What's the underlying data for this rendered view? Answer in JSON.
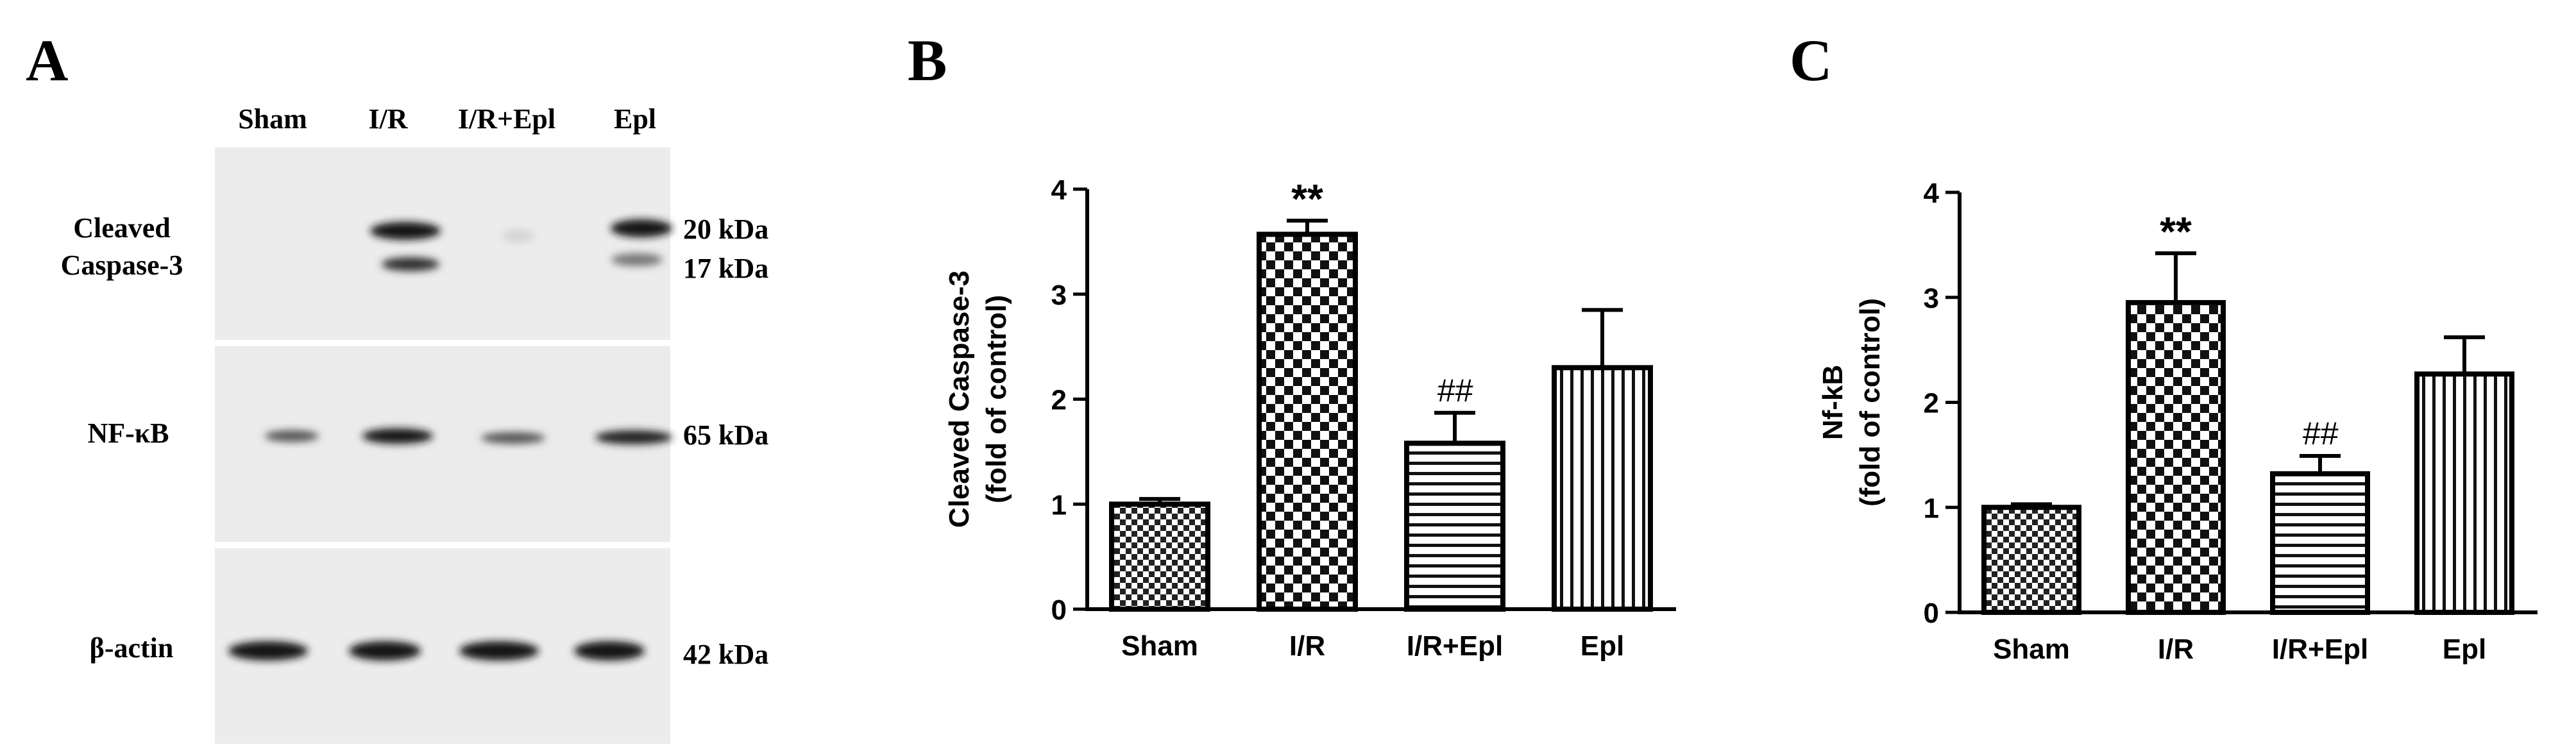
{
  "panel_a": {
    "letter": "A",
    "lanes": [
      "Sham",
      "I/R",
      "I/R+Epl",
      "Epl"
    ],
    "blots": [
      {
        "label_lines": [
          "Cleaved",
          "Caspase-3"
        ],
        "sizes": [
          "20 kDa",
          "17 kDa"
        ]
      },
      {
        "label_lines": [
          "NF-κB"
        ],
        "sizes": [
          "65 kDa"
        ]
      },
      {
        "label_lines": [
          "β-actin"
        ],
        "sizes": [
          "42 kDa"
        ]
      }
    ]
  },
  "chart_data": [
    {
      "panel": "B",
      "type": "bar",
      "categories": [
        "Sham",
        "I/R",
        "I/R+Epl",
        "Epl"
      ],
      "values": [
        1.0,
        3.57,
        1.58,
        2.3
      ],
      "errors": [
        0.05,
        0.13,
        0.29,
        0.55
      ],
      "annotations": [
        "",
        "**",
        "##",
        ""
      ],
      "patterns": [
        "checker-small",
        "checker-large",
        "horizontal",
        "vertical"
      ],
      "ylabel_lines": [
        "Cleaved Caspase-3",
        "(fold of control)"
      ],
      "ylim": [
        0,
        4
      ],
      "yticks": [
        "0",
        "1",
        "2",
        "3",
        "4"
      ]
    },
    {
      "panel": "C",
      "type": "bar",
      "categories": [
        "Sham",
        "I/R",
        "I/R+Epl",
        "Epl"
      ],
      "values": [
        1.0,
        2.95,
        1.32,
        2.27
      ],
      "errors": [
        0.03,
        0.47,
        0.17,
        0.35
      ],
      "annotations": [
        "",
        "**",
        "##",
        ""
      ],
      "patterns": [
        "checker-small",
        "checker-large",
        "horizontal",
        "vertical"
      ],
      "ylabel_lines": [
        "Nf-kB",
        "(fold of control)"
      ],
      "ylim": [
        0,
        4
      ],
      "yticks": [
        "0",
        "1",
        "2",
        "3",
        "4"
      ]
    }
  ]
}
